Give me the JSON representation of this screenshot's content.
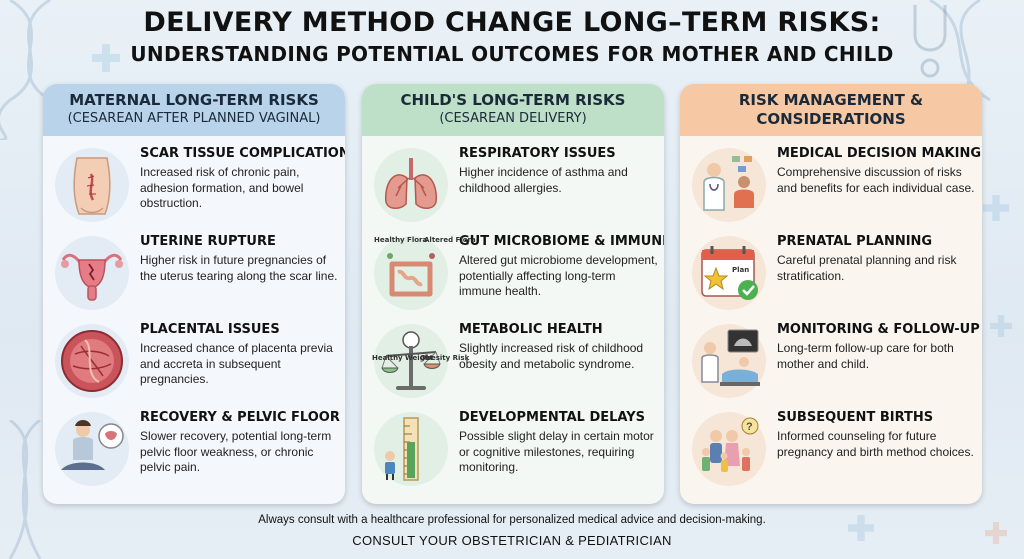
{
  "title": {
    "line1": "DELIVERY METHOD CHANGE LONG–TERM RISKS:",
    "line2": "UNDERSTANDING POTENTIAL OUTCOMES FOR MOTHER AND CHILD"
  },
  "columns": [
    {
      "heading": "MATERNAL LONG-TERM RISKS",
      "subheading": "(CESAREAN AFTER PLANNED VAGINAL)",
      "color": "#b9d3ea",
      "items": [
        {
          "title": "SCAR TISSUE COMPLICATIONS",
          "desc": "Increased risk of chronic pain, adhesion formation, and bowel obstruction.",
          "icon": "abdomen-scar-icon"
        },
        {
          "title": "UTERINE RUPTURE",
          "desc": "Higher risk in future pregnancies of the uterus tearing along the scar line.",
          "icon": "uterus-icon"
        },
        {
          "title": "PLACENTAL ISSUES",
          "desc": "Increased chance of placenta previa and accreta in subsequent pregnancies.",
          "icon": "placenta-icon"
        },
        {
          "title": "RECOVERY & PELVIC FLOOR",
          "desc": "Slower recovery, potential long-term pelvic floor weakness, or chronic pelvic pain.",
          "icon": "pelvic-recovery-icon"
        }
      ]
    },
    {
      "heading": "CHILD'S LONG-TERM RISKS",
      "subheading": "(CESAREAN DELIVERY)",
      "color": "#bfe0c8",
      "items": [
        {
          "title": "RESPIRATORY ISSUES",
          "desc": "Higher incidence of asthma and childhood allergies.",
          "icon": "lungs-icon"
        },
        {
          "title": "GUT MICROBIOME & IMMUNITY",
          "desc": "Altered gut microbiome development, potentially affecting long-term immune health.",
          "icon": "intestine-icon",
          "labels": [
            "Healthy Flora",
            "Altered Flora"
          ]
        },
        {
          "title": "METABOLIC HEALTH",
          "desc": "Slightly increased risk of childhood obesity and metabolic syndrome.",
          "icon": "balance-scale-icon",
          "labels": [
            "Healthy Weight",
            "Obesity Risk"
          ]
        },
        {
          "title": "DEVELOPMENTAL DELAYS",
          "desc": "Possible slight delay in certain motor or cognitive milestones, requiring monitoring.",
          "icon": "growth-chart-icon"
        }
      ]
    },
    {
      "heading": "RISK MANAGEMENT &",
      "subheading": "CONSIDERATIONS",
      "color": "#f6c9a4",
      "items": [
        {
          "title": "MEDICAL DECISION MAKING",
          "desc": "Comprehensive discussion of risks and benefits for each individual case.",
          "icon": "doctor-consult-icon"
        },
        {
          "title": "PRENATAL PLANNING",
          "desc": "Careful prenatal planning and risk stratification.",
          "icon": "calendar-plan-icon",
          "labels": [
            "Plan"
          ]
        },
        {
          "title": "MONITORING & FOLLOW-UP",
          "desc": "Long-term follow-up care for both mother and child.",
          "icon": "ultrasound-icon"
        },
        {
          "title": "SUBSEQUENT BIRTHS",
          "desc": "Informed counseling for future pregnancy and birth method choices.",
          "icon": "family-icon"
        }
      ]
    }
  ],
  "footer": {
    "note": "Always consult with a healthcare professional for personalized medical advice and decision-making.",
    "cta": "CONSULT YOUR OBSTETRICIAN & PEDIATRICIAN"
  }
}
